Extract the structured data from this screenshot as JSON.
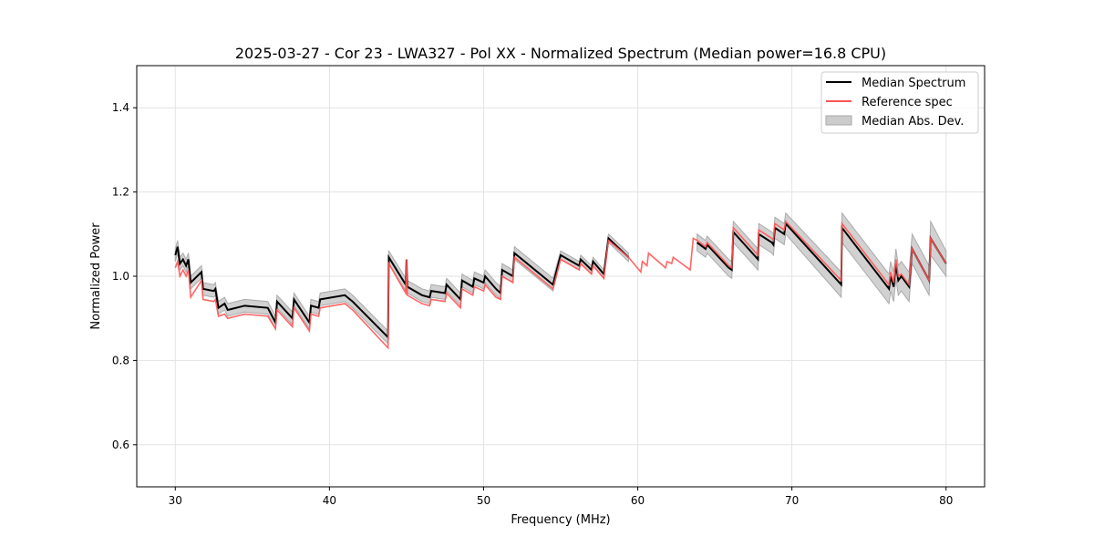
{
  "chart_data": {
    "type": "line",
    "title": "2025-03-27 - Cor 23 - LWA327 - Pol XX - Normalized Spectrum (Median power=16.8 CPU)",
    "xlabel": "Frequency (MHz)",
    "ylabel": "Normalized Power",
    "xlim": [
      27.5,
      82.5
    ],
    "ylim": [
      0.5,
      1.5
    ],
    "xticks": [
      30,
      40,
      50,
      60,
      70,
      80
    ],
    "xtick_labels": [
      "30",
      "40",
      "50",
      "60",
      "70",
      "80"
    ],
    "yticks": [
      0.6,
      0.8,
      1.0,
      1.2,
      1.4
    ],
    "ytick_labels": [
      "0.6",
      "0.8",
      "1.0",
      "1.2",
      "1.4"
    ],
    "grid": true,
    "legend": {
      "placement": "top-right",
      "entries": [
        "Median Spectrum",
        "Reference spec",
        "Median Abs. Dev."
      ]
    },
    "colors": {
      "median": "#000000",
      "reference": "#ff5555",
      "mad": "#cccccc"
    },
    "columns": [
      "freq_MHz",
      "median",
      "reference",
      "mad"
    ],
    "points": [
      [
        30.0,
        1.05,
        1.02,
        0.015
      ],
      [
        30.15,
        1.07,
        1.035,
        0.015
      ],
      [
        30.3,
        1.03,
        1.0,
        0.015
      ],
      [
        30.5,
        1.04,
        1.015,
        0.015
      ],
      [
        30.7,
        1.025,
        1.0,
        0.015
      ],
      [
        30.85,
        1.04,
        1.015,
        0.015
      ],
      [
        31.0,
        0.985,
        0.95,
        0.015
      ],
      [
        31.7,
        1.01,
        0.99,
        0.015
      ],
      [
        31.8,
        0.97,
        0.945,
        0.015
      ],
      [
        32.5,
        0.965,
        0.94,
        0.015
      ],
      [
        32.6,
        0.97,
        0.945,
        0.015
      ],
      [
        32.8,
        0.925,
        0.905,
        0.015
      ],
      [
        33.2,
        0.935,
        0.91,
        0.015
      ],
      [
        33.4,
        0.92,
        0.9,
        0.015
      ],
      [
        34.5,
        0.93,
        0.91,
        0.015
      ],
      [
        36.0,
        0.925,
        0.905,
        0.015
      ],
      [
        36.5,
        0.89,
        0.875,
        0.015
      ],
      [
        36.6,
        0.94,
        0.92,
        0.015
      ],
      [
        37.6,
        0.9,
        0.88,
        0.015
      ],
      [
        37.7,
        0.945,
        0.925,
        0.015
      ],
      [
        38.7,
        0.89,
        0.87,
        0.015
      ],
      [
        38.8,
        0.93,
        0.91,
        0.015
      ],
      [
        39.3,
        0.925,
        0.905,
        0.015
      ],
      [
        39.4,
        0.945,
        0.925,
        0.015
      ],
      [
        41.0,
        0.955,
        0.935,
        0.015
      ],
      [
        41.5,
        0.94,
        0.92,
        0.015
      ],
      [
        43.8,
        0.855,
        0.83,
        0.015
      ],
      [
        43.85,
        1.045,
        1.03,
        0.015
      ],
      [
        44.95,
        0.98,
        0.96,
        0.015
      ],
      [
        45.0,
        1.04,
        1.04,
        0.0
      ],
      [
        45.05,
        0.975,
        0.955,
        0.015
      ],
      [
        46.0,
        0.955,
        0.935,
        0.015
      ],
      [
        46.5,
        0.95,
        0.93,
        0.015
      ],
      [
        46.6,
        0.965,
        0.945,
        0.015
      ],
      [
        47.5,
        0.96,
        0.94,
        0.015
      ],
      [
        47.6,
        0.98,
        0.96,
        0.015
      ],
      [
        48.5,
        0.945,
        0.925,
        0.015
      ],
      [
        48.6,
        0.99,
        0.97,
        0.015
      ],
      [
        49.3,
        0.975,
        0.955,
        0.015
      ],
      [
        49.4,
        0.995,
        0.975,
        0.015
      ],
      [
        50.0,
        0.985,
        0.965,
        0.015
      ],
      [
        50.1,
        1.0,
        0.98,
        0.015
      ],
      [
        50.8,
        0.97,
        0.95,
        0.015
      ],
      [
        51.1,
        0.96,
        0.945,
        0.015
      ],
      [
        51.2,
        1.015,
        1.0,
        0.015
      ],
      [
        51.9,
        1.0,
        0.985,
        0.015
      ],
      [
        52.0,
        1.055,
        1.045,
        0.015
      ],
      [
        54.5,
        0.98,
        0.97,
        0.015
      ],
      [
        55.0,
        1.05,
        1.04,
        0.01
      ],
      [
        56.2,
        1.025,
        1.015,
        0.01
      ],
      [
        56.3,
        1.04,
        1.03,
        0.01
      ],
      [
        57.0,
        1.015,
        1.005,
        0.01
      ],
      [
        57.1,
        1.035,
        1.025,
        0.01
      ],
      [
        57.8,
        1.005,
        0.995,
        0.01
      ],
      [
        58.1,
        1.09,
        1.085,
        0.01
      ],
      [
        59.4,
        1.045,
        1.045,
        0.01
      ],
      [
        60.2,
        null,
        1.01,
        null
      ],
      [
        60.3,
        null,
        1.035,
        null
      ],
      [
        60.6,
        null,
        1.025,
        null
      ],
      [
        60.7,
        null,
        1.055,
        null
      ],
      [
        61.8,
        null,
        1.02,
        null
      ],
      [
        61.9,
        null,
        1.035,
        null
      ],
      [
        62.2,
        null,
        1.03,
        null
      ],
      [
        62.3,
        null,
        1.045,
        null
      ],
      [
        63.4,
        null,
        1.015,
        null
      ],
      [
        63.6,
        null,
        1.09,
        null
      ],
      [
        63.85,
        1.08,
        1.085,
        0.02
      ],
      [
        64.4,
        1.065,
        1.07,
        0.02
      ],
      [
        64.5,
        1.075,
        1.08,
        0.02
      ],
      [
        65.9,
        1.02,
        1.025,
        0.02
      ],
      [
        66.1,
        1.015,
        1.02,
        0.02
      ],
      [
        66.2,
        1.105,
        1.115,
        0.025
      ],
      [
        67.8,
        1.04,
        1.05,
        0.025
      ],
      [
        67.85,
        1.1,
        1.11,
        0.025
      ],
      [
        68.7,
        1.08,
        1.09,
        0.025
      ],
      [
        68.8,
        1.075,
        1.085,
        0.025
      ],
      [
        68.9,
        1.115,
        1.125,
        0.025
      ],
      [
        69.5,
        1.1,
        1.11,
        0.025
      ],
      [
        69.6,
        1.125,
        1.13,
        0.025
      ],
      [
        73.2,
        0.98,
        0.99,
        0.03
      ],
      [
        73.25,
        1.115,
        1.125,
        0.035
      ],
      [
        76.3,
        0.97,
        0.98,
        0.035
      ],
      [
        76.4,
        1.0,
        1.01,
        0.035
      ],
      [
        76.6,
        0.975,
        0.985,
        0.035
      ],
      [
        76.75,
        1.03,
        1.04,
        0.035
      ],
      [
        76.9,
        0.99,
        1.0,
        0.035
      ],
      [
        77.1,
        1.0,
        1.005,
        0.035
      ],
      [
        77.6,
        0.975,
        0.98,
        0.035
      ],
      [
        77.8,
        1.065,
        1.065,
        0.035
      ],
      [
        78.9,
        0.99,
        0.99,
        0.035
      ],
      [
        79.0,
        1.09,
        1.09,
        0.04
      ],
      [
        80.0,
        1.03,
        1.03,
        0.03
      ]
    ]
  }
}
